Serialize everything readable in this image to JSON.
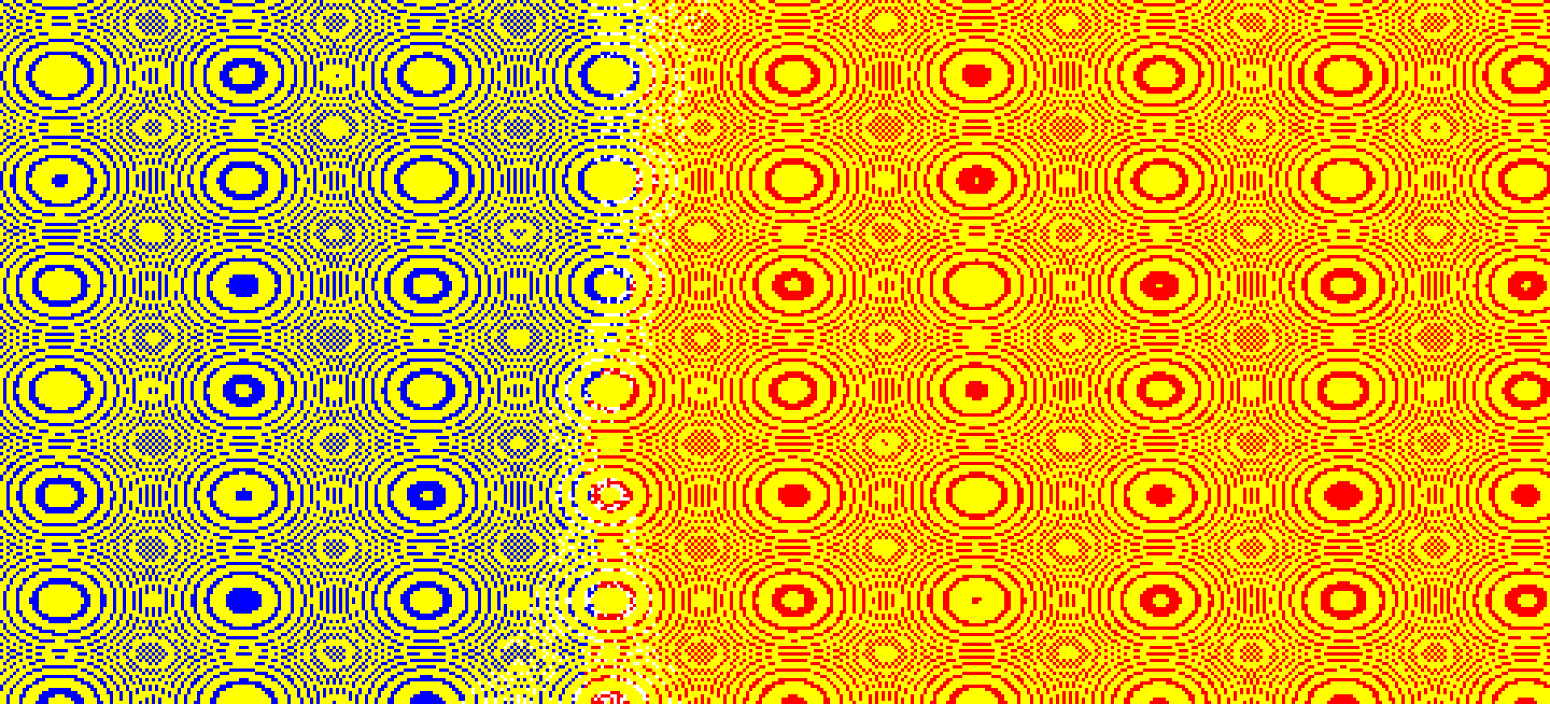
{
  "scene": {
    "description_free": true,
    "colors": {
      "background": "#ffff00",
      "left_field": "#0000ff",
      "right_field": "#ff0000",
      "speckle": "#ffffff"
    },
    "sources": [
      {
        "id": "blue-main",
        "side": "left",
        "strength": 1.0
      },
      {
        "id": "blue-center",
        "side": "left",
        "strength": 0.85
      },
      {
        "id": "blue-lower",
        "side": "left",
        "strength": 0.9
      },
      {
        "id": "blue-upper",
        "side": "left",
        "strength": 0.6
      },
      {
        "id": "blue-corner",
        "side": "left",
        "strength": 0.7
      },
      {
        "id": "red-main",
        "side": "right",
        "strength": 1.0
      },
      {
        "id": "red-left",
        "side": "right",
        "strength": 0.85
      },
      {
        "id": "red-lower",
        "side": "right",
        "strength": 0.95
      },
      {
        "id": "red-upper",
        "side": "right",
        "strength": 0.7
      },
      {
        "id": "red-small",
        "side": "right",
        "strength": 0.5
      }
    ]
  }
}
